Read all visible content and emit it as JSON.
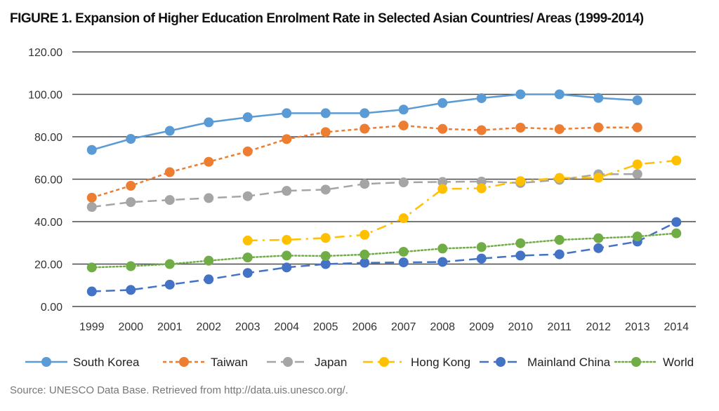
{
  "chart_data": {
    "type": "line",
    "title": "FIGURE 1. Expansion of Higher Education Enrolment Rate in Selected Asian Countries/ Areas (1999-2014)",
    "categories": [
      "1999",
      "2000",
      "2001",
      "2002",
      "2003",
      "2004",
      "2005",
      "2006",
      "2007",
      "2008",
      "2009",
      "2010",
      "2011",
      "2012",
      "2013",
      "2014"
    ],
    "ylim": [
      0,
      120
    ],
    "yticks": [
      "0.00",
      "20.00",
      "40.00",
      "60.00",
      "80.00",
      "100.00",
      "120.00"
    ],
    "grid": true,
    "legend_position": "bottom",
    "series": [
      {
        "name": "South Korea",
        "color": "#5B9BD5",
        "dash": "solid",
        "values": [
          73.8,
          79.0,
          82.8,
          86.8,
          89.2,
          91.1,
          91.1,
          91.1,
          92.8,
          95.9,
          98.2,
          100.0,
          100.0,
          98.3,
          97.2,
          null
        ]
      },
      {
        "name": "Taiwan",
        "color": "#ED7D31",
        "dash": "dash",
        "values": [
          51.3,
          56.9,
          63.3,
          68.2,
          73.1,
          78.9,
          82.2,
          83.8,
          85.3,
          83.7,
          83.1,
          84.3,
          83.6,
          84.4,
          84.4,
          null
        ]
      },
      {
        "name": "Japan",
        "color": "#A5A5A5",
        "dash": "longdash",
        "values": [
          46.9,
          49.2,
          50.2,
          51.1,
          52.0,
          54.5,
          55.1,
          57.8,
          58.5,
          58.7,
          58.9,
          58.2,
          59.7,
          62.3,
          62.4,
          null
        ]
      },
      {
        "name": "Hong Kong",
        "color": "#FFC000",
        "dash": "dashdot",
        "values": [
          null,
          null,
          null,
          null,
          31.1,
          31.4,
          32.3,
          33.8,
          41.6,
          55.4,
          55.7,
          59.1,
          60.6,
          60.7,
          67.0,
          68.8
        ]
      },
      {
        "name": "Mainland China",
        "color": "#4472C4",
        "dash": "longdash",
        "values": [
          7.1,
          7.8,
          10.3,
          12.8,
          15.8,
          18.4,
          20.0,
          20.6,
          20.8,
          21.0,
          22.6,
          24.0,
          24.6,
          27.5,
          30.6,
          39.8
        ]
      },
      {
        "name": "World",
        "color": "#70AD47",
        "dash": "dot",
        "values": [
          18.4,
          19.0,
          20.0,
          21.6,
          23.1,
          24.0,
          23.8,
          24.5,
          25.8,
          27.3,
          28.0,
          29.8,
          31.4,
          32.2,
          33.0,
          34.5
        ]
      }
    ]
  },
  "source": "Source: UNESCO Data Base. Retrieved from http://data.uis.unesco.org/."
}
